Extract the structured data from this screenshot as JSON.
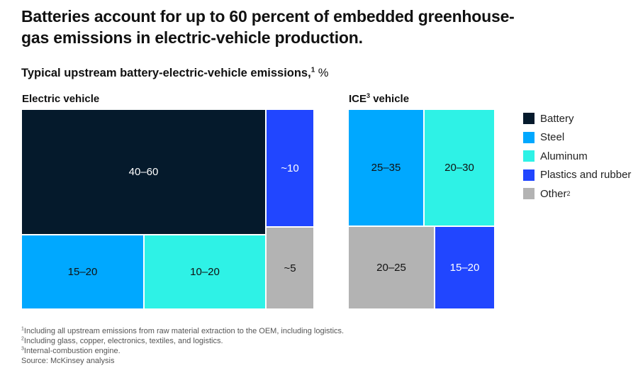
{
  "header": {
    "title": "Batteries account for up to 60 percent of embedded greenhouse-gas emissions in electric-vehicle production.",
    "subtitle": "Typical upstream battery-electric-vehicle emissions,",
    "subtitle_sup": "1",
    "subtitle_unit": " %"
  },
  "colors": {
    "Battery": "#051a2c",
    "Steel": "#00a8ff",
    "Aluminum": "#2ef2e6",
    "Plastics and rubber": "#2146ff",
    "Other": "#b3b3b3"
  },
  "chart_data": [
    {
      "type": "treemap",
      "title": "Electric vehicle",
      "unit": "%",
      "tiles": [
        {
          "category": "Battery",
          "label": "40–60",
          "range": [
            40,
            60
          ]
        },
        {
          "category": "Plastics and rubber",
          "label": "~10",
          "range": [
            10,
            10
          ]
        },
        {
          "category": "Other",
          "label": "~5",
          "range": [
            5,
            5
          ]
        },
        {
          "category": "Steel",
          "label": "15–20",
          "range": [
            15,
            20
          ]
        },
        {
          "category": "Aluminum",
          "label": "10–20",
          "range": [
            10,
            20
          ]
        }
      ]
    },
    {
      "type": "treemap",
      "title": "ICE",
      "title_sup": "3",
      "title_suffix": " vehicle",
      "unit": "%",
      "tiles": [
        {
          "category": "Steel",
          "label": "25–35",
          "range": [
            25,
            35
          ]
        },
        {
          "category": "Aluminum",
          "label": "20–30",
          "range": [
            20,
            30
          ]
        },
        {
          "category": "Other",
          "label": "20–25",
          "range": [
            20,
            25
          ]
        },
        {
          "category": "Plastics and rubber",
          "label": "15–20",
          "range": [
            15,
            20
          ]
        }
      ]
    }
  ],
  "legend": [
    {
      "label": "Battery",
      "sup": ""
    },
    {
      "label": "Steel",
      "sup": ""
    },
    {
      "label": "Aluminum",
      "sup": ""
    },
    {
      "label": "Plastics and rubber",
      "sup": ""
    },
    {
      "label": "Other",
      "sup": "2"
    }
  ],
  "footnotes": [
    {
      "sup": "1",
      "text": "Including all upstream emissions from raw material extraction to the OEM, including logistics."
    },
    {
      "sup": "2",
      "text": "Including glass, copper, electronics, textiles, and logistics."
    },
    {
      "sup": "3",
      "text": "Internal-combustion engine."
    },
    {
      "sup": "",
      "text": " Source: McKinsey analysis"
    }
  ]
}
